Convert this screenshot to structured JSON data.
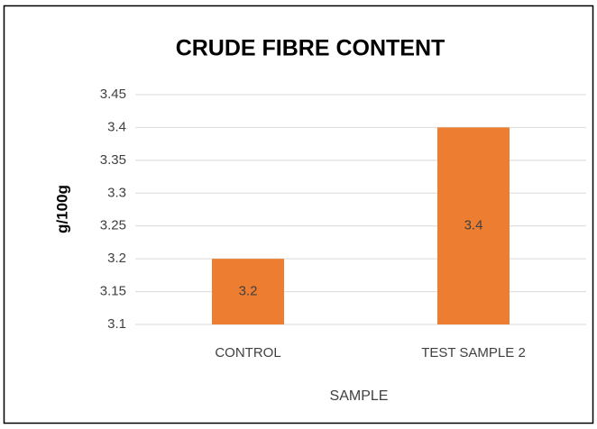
{
  "chart_data": {
    "type": "bar",
    "title": "CRUDE FIBRE CONTENT",
    "x_label": "SAMPLE",
    "y_label": "g/100g",
    "categories": [
      "CONTROL",
      "TEST SAMPLE 2"
    ],
    "values": [
      3.2,
      3.4
    ],
    "color": "#ed7d31",
    "ylim": [
      3.1,
      3.45
    ],
    "yticks": [
      3.1,
      3.15,
      3.2,
      3.25,
      3.3,
      3.35,
      3.4,
      3.45
    ],
    "grid": true,
    "data_labels": true
  }
}
